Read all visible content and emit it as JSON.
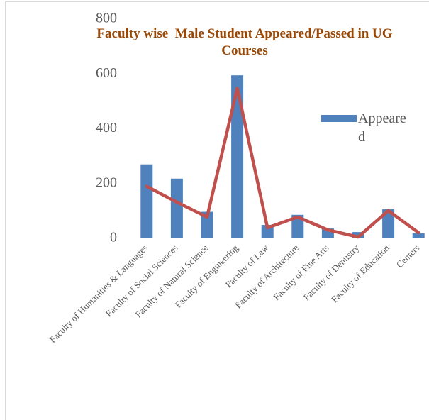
{
  "chart_data": {
    "type": "bar",
    "title": "Faculty wise  Male Student Appeared/Passed in UG Courses",
    "categories": [
      "Faculty of Humanities & Languages",
      "Faculty of Social Sciences",
      "Faculty of Natural Science",
      "Faculty of Engineering",
      "Faculty of Law",
      "Faculty of Architecture",
      "Faculty of Fine Arts",
      "Faculty of Dentistry",
      "Faculty of Education",
      "Centers"
    ],
    "series": [
      {
        "name": "Appeared",
        "type": "bar",
        "color": "#4f81bd",
        "values": [
          270,
          218,
          97,
          595,
          49,
          86,
          36,
          23,
          106,
          18
        ]
      },
      {
        "type": "line",
        "color": "#c0504d",
        "values": [
          190,
          132,
          78,
          548,
          39,
          78,
          31,
          5,
          101,
          21
        ]
      }
    ],
    "ylim": [
      0,
      800
    ],
    "yticks": [
      0,
      200,
      400,
      600,
      800
    ],
    "grid": false
  }
}
